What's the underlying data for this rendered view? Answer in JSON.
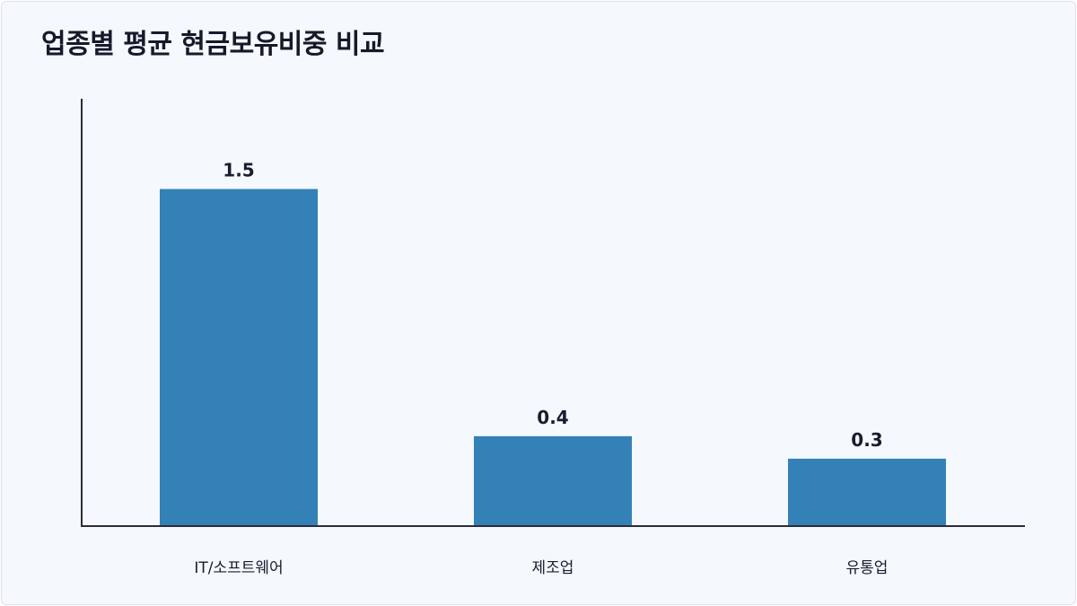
{
  "title": "업종별 평균 현금보유비중 비교",
  "colors": {
    "bar": "#3381b7",
    "background": "#f5f8fd",
    "axis": "#2a2c3a",
    "text": "#1a1c2e"
  },
  "chart_data": {
    "type": "bar",
    "title": "업종별 평균 현금보유비중 비교",
    "categories": [
      "IT/소프트웨어",
      "제조업",
      "유통업"
    ],
    "values": [
      1.5,
      0.4,
      0.3
    ],
    "value_labels": [
      "1.5",
      "0.4",
      "0.3"
    ],
    "xlabel": "",
    "ylabel": "",
    "ylim": [
      0,
      1.75
    ],
    "grid": false,
    "legend": "none"
  }
}
